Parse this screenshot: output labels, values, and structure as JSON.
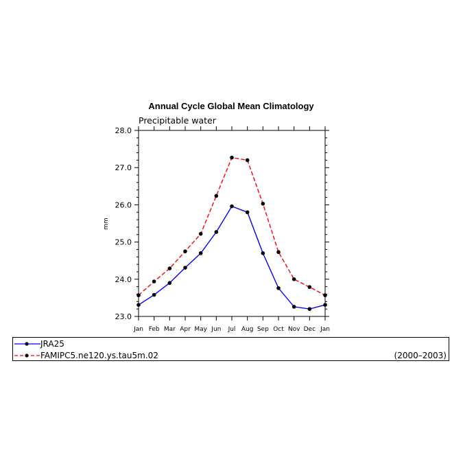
{
  "chart_data": {
    "type": "line",
    "title": "Annual Cycle Global Mean Climatology",
    "subtitle": "Precipitable water",
    "xlabel": "",
    "ylabel": "mm",
    "categories": [
      "Jan",
      "Feb",
      "Mar",
      "Apr",
      "May",
      "Jun",
      "Jul",
      "Aug",
      "Sep",
      "Oct",
      "Nov",
      "Dec",
      "Jan"
    ],
    "ylim": [
      23.0,
      28.0
    ],
    "yticks": [
      "23.0",
      "24.0",
      "25.0",
      "26.0",
      "27.0",
      "28.0"
    ],
    "series": [
      {
        "name": "JRA25",
        "color": "#0000ff",
        "dash": "solid",
        "values": [
          23.31,
          23.58,
          23.9,
          24.31,
          24.7,
          25.27,
          25.96,
          25.8,
          24.7,
          23.76,
          23.26,
          23.2,
          23.31
        ]
      },
      {
        "name": "FAMIPC5.ne120.ys.tau5m.02",
        "color": "#ff0000",
        "dash": "dashed",
        "values": [
          23.57,
          23.94,
          24.29,
          24.75,
          25.22,
          26.24,
          27.27,
          27.2,
          26.03,
          24.73,
          24.0,
          23.79,
          23.57
        ]
      }
    ],
    "grid": false,
    "legend_position": "bottom"
  },
  "legend": {
    "period": "(2000–2003)"
  }
}
